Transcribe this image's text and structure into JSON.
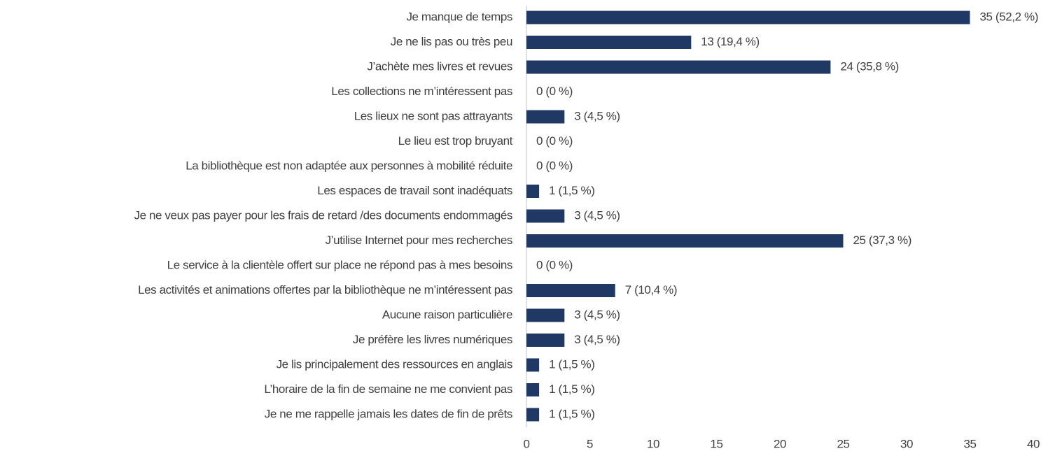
{
  "chart_data": {
    "type": "barh",
    "categories": [
      "Je manque de temps",
      "Je ne lis pas ou très peu",
      "J’achète mes livres et revues",
      "Les collections ne m’intéressent pas",
      "Les lieux ne sont pas attrayants",
      "Le lieu est trop bruyant",
      "La bibliothèque est non adaptée aux personnes à mobilité réduite",
      "Les espaces de travail sont inadéquats",
      "Je ne veux pas payer pour les frais de retard /des documents endommagés",
      "J’utilise Internet pour mes recherches",
      "Le service à la clientèle offert sur place ne répond pas à mes besoins",
      "Les activités et animations offertes par la bibliothèque ne m’intéressent pas",
      "Aucune raison particulière",
      "Je préfère les livres numériques",
      "Je lis principalement des ressources en anglais",
      "L’horaire de la fin de semaine ne me convient pas",
      "Je ne me rappelle jamais les dates de fin de prêts"
    ],
    "values": [
      35,
      13,
      24,
      0,
      3,
      0,
      0,
      1,
      3,
      25,
      0,
      7,
      3,
      3,
      1,
      1,
      1
    ],
    "value_labels": [
      "35 (52,2 %)",
      "13 (19,4 %)",
      "24 (35,8 %)",
      "0 (0 %)",
      "3 (4,5 %)",
      "0 (0 %)",
      "0 (0 %)",
      "1 (1,5 %)",
      "3 (4,5 %)",
      "25 (37,3 %)",
      "0 (0 %)",
      "7 (10,4 %)",
      "3 (4,5 %)",
      "3 (4,5 %)",
      "1 (1,5 %)",
      "1 (1,5 %)",
      "1 (1,5 %)"
    ],
    "color": "#1f3864",
    "xlim": [
      0,
      40
    ],
    "xticks": [
      0,
      5,
      10,
      15,
      20,
      25,
      30,
      35,
      40
    ],
    "grid": false
  }
}
